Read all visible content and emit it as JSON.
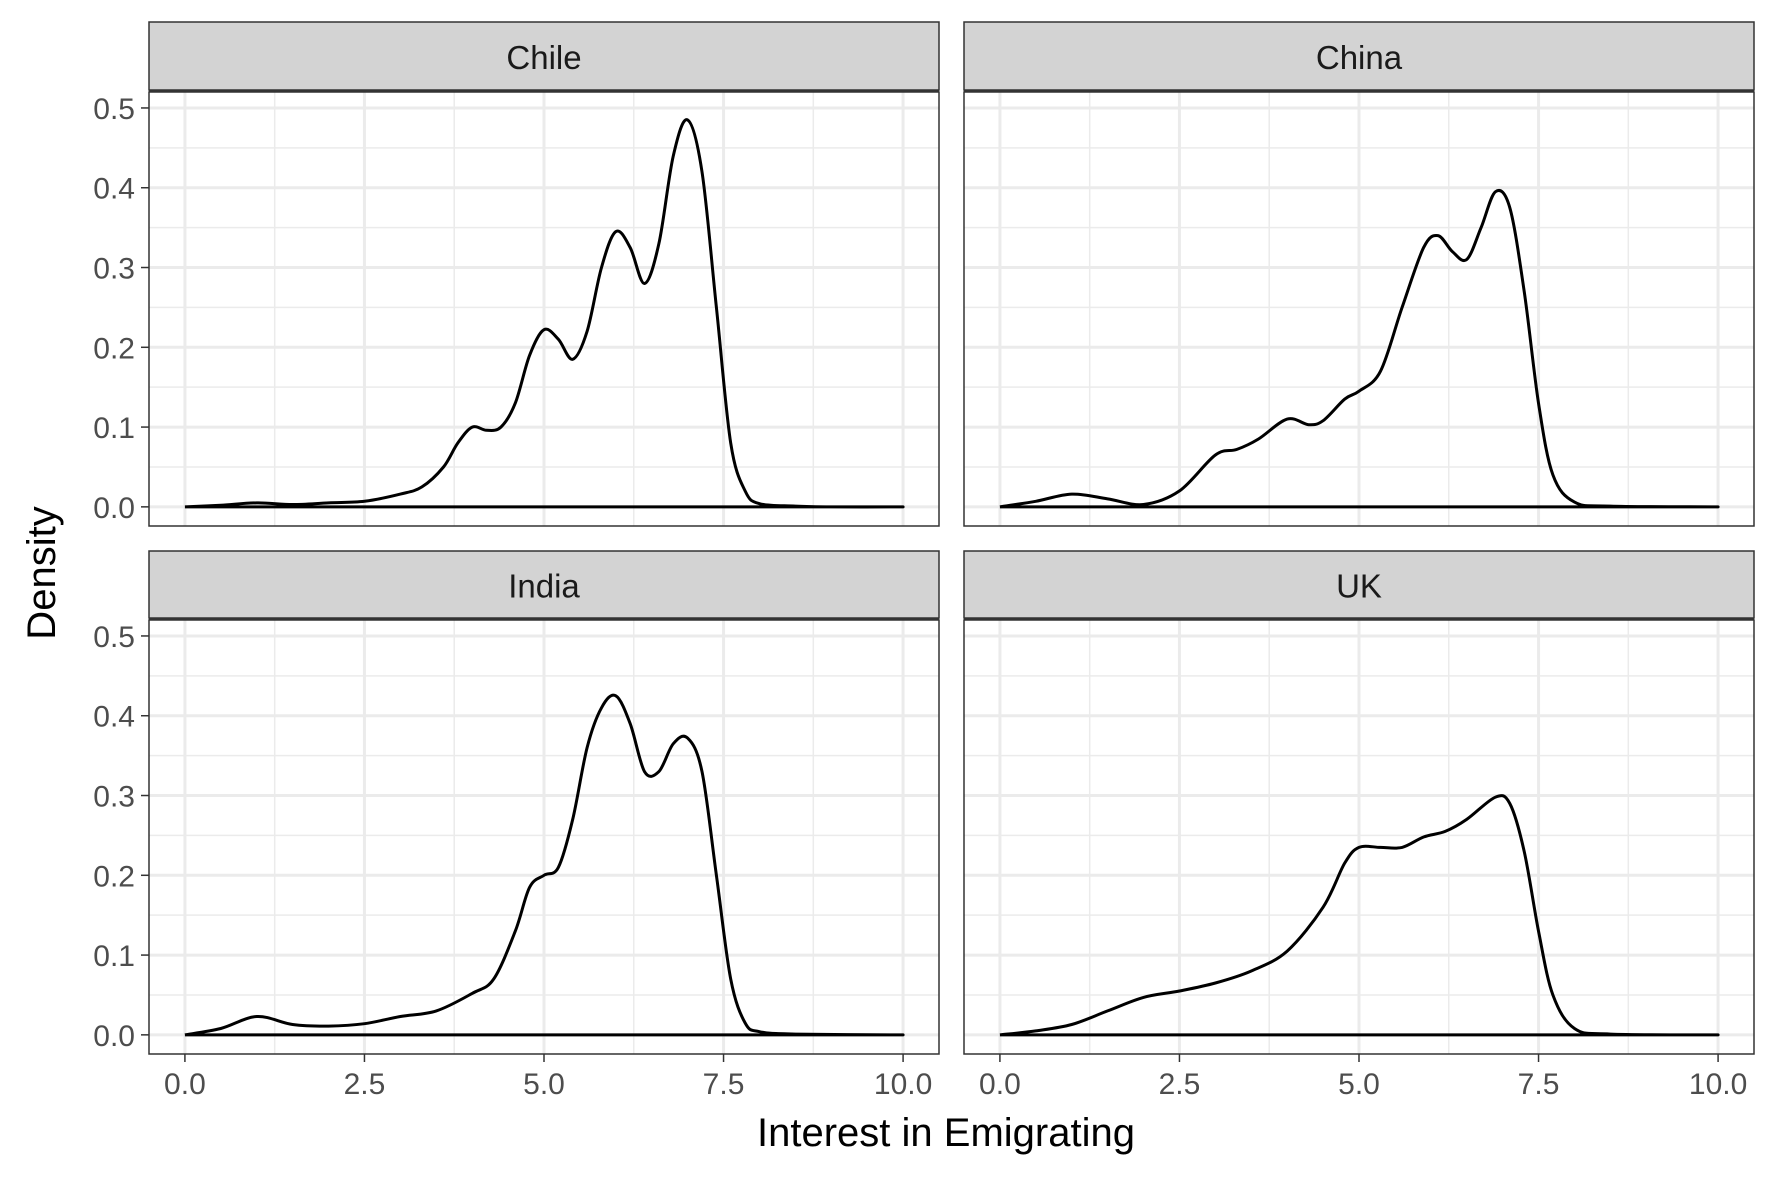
{
  "chart_data": {
    "type": "line",
    "subtype": "density-facets",
    "title": "",
    "xlabel": "Interest in Emigrating",
    "ylabel": "Density",
    "xlim": [
      -0.5,
      10.5
    ],
    "ylim": [
      -0.024,
      0.52
    ],
    "x_ticks": [
      "0.0",
      "2.5",
      "5.0",
      "7.5",
      "10.0"
    ],
    "y_ticks": [
      "0.0",
      "0.1",
      "0.2",
      "0.3",
      "0.4",
      "0.5"
    ],
    "grid": true,
    "line_color": "#000000",
    "strip_color": "#d3d3d3",
    "grid_color": "#ebebeb",
    "facets": [
      {
        "name": "Chile",
        "points": [
          [
            0,
            0
          ],
          [
            0.5,
            0.002
          ],
          [
            1,
            0.005
          ],
          [
            1.5,
            0.003
          ],
          [
            2,
            0.005
          ],
          [
            2.5,
            0.007
          ],
          [
            3,
            0.016
          ],
          [
            3.3,
            0.025
          ],
          [
            3.6,
            0.05
          ],
          [
            3.8,
            0.08
          ],
          [
            4,
            0.1
          ],
          [
            4.2,
            0.096
          ],
          [
            4.4,
            0.1
          ],
          [
            4.6,
            0.13
          ],
          [
            4.8,
            0.19
          ],
          [
            5,
            0.222
          ],
          [
            5.2,
            0.21
          ],
          [
            5.4,
            0.185
          ],
          [
            5.6,
            0.22
          ],
          [
            5.8,
            0.3
          ],
          [
            6,
            0.345
          ],
          [
            6.2,
            0.325
          ],
          [
            6.4,
            0.28
          ],
          [
            6.6,
            0.33
          ],
          [
            6.8,
            0.44
          ],
          [
            7,
            0.485
          ],
          [
            7.2,
            0.42
          ],
          [
            7.4,
            0.25
          ],
          [
            7.6,
            0.08
          ],
          [
            7.8,
            0.02
          ],
          [
            8,
            0.004
          ],
          [
            8.5,
            0.001
          ],
          [
            9,
            0
          ],
          [
            10,
            0
          ]
        ]
      },
      {
        "name": "China",
        "points": [
          [
            0,
            0
          ],
          [
            0.5,
            0.007
          ],
          [
            1,
            0.016
          ],
          [
            1.5,
            0.01
          ],
          [
            2,
            0.003
          ],
          [
            2.5,
            0.02
          ],
          [
            3,
            0.065
          ],
          [
            3.3,
            0.072
          ],
          [
            3.6,
            0.085
          ],
          [
            4,
            0.11
          ],
          [
            4.3,
            0.103
          ],
          [
            4.5,
            0.108
          ],
          [
            4.8,
            0.135
          ],
          [
            5,
            0.145
          ],
          [
            5.3,
            0.17
          ],
          [
            5.6,
            0.25
          ],
          [
            5.9,
            0.325
          ],
          [
            6.1,
            0.34
          ],
          [
            6.3,
            0.32
          ],
          [
            6.5,
            0.31
          ],
          [
            6.7,
            0.35
          ],
          [
            6.9,
            0.395
          ],
          [
            7.1,
            0.375
          ],
          [
            7.3,
            0.27
          ],
          [
            7.5,
            0.13
          ],
          [
            7.7,
            0.04
          ],
          [
            8,
            0.006
          ],
          [
            8.5,
            0.001
          ],
          [
            10,
            0
          ]
        ]
      },
      {
        "name": "India",
        "points": [
          [
            0,
            0
          ],
          [
            0.5,
            0.008
          ],
          [
            1,
            0.023
          ],
          [
            1.5,
            0.013
          ],
          [
            2,
            0.011
          ],
          [
            2.5,
            0.014
          ],
          [
            3,
            0.023
          ],
          [
            3.5,
            0.03
          ],
          [
            4,
            0.052
          ],
          [
            4.3,
            0.07
          ],
          [
            4.6,
            0.13
          ],
          [
            4.8,
            0.185
          ],
          [
            5,
            0.2
          ],
          [
            5.2,
            0.21
          ],
          [
            5.4,
            0.27
          ],
          [
            5.6,
            0.36
          ],
          [
            5.8,
            0.41
          ],
          [
            6,
            0.425
          ],
          [
            6.2,
            0.39
          ],
          [
            6.4,
            0.33
          ],
          [
            6.6,
            0.33
          ],
          [
            6.8,
            0.365
          ],
          [
            7,
            0.372
          ],
          [
            7.2,
            0.33
          ],
          [
            7.4,
            0.2
          ],
          [
            7.6,
            0.07
          ],
          [
            7.8,
            0.015
          ],
          [
            8,
            0.004
          ],
          [
            8.5,
            0.001
          ],
          [
            10,
            0
          ]
        ]
      },
      {
        "name": "UK",
        "points": [
          [
            0,
            0
          ],
          [
            0.5,
            0.005
          ],
          [
            1,
            0.013
          ],
          [
            1.5,
            0.03
          ],
          [
            2,
            0.047
          ],
          [
            2.5,
            0.055
          ],
          [
            3,
            0.065
          ],
          [
            3.5,
            0.08
          ],
          [
            4,
            0.105
          ],
          [
            4.5,
            0.16
          ],
          [
            4.8,
            0.215
          ],
          [
            5,
            0.235
          ],
          [
            5.3,
            0.235
          ],
          [
            5.6,
            0.235
          ],
          [
            5.9,
            0.248
          ],
          [
            6.2,
            0.255
          ],
          [
            6.5,
            0.27
          ],
          [
            6.9,
            0.298
          ],
          [
            7.1,
            0.29
          ],
          [
            7.3,
            0.23
          ],
          [
            7.5,
            0.13
          ],
          [
            7.7,
            0.05
          ],
          [
            8,
            0.008
          ],
          [
            8.5,
            0.001
          ],
          [
            10,
            0
          ]
        ]
      }
    ]
  }
}
